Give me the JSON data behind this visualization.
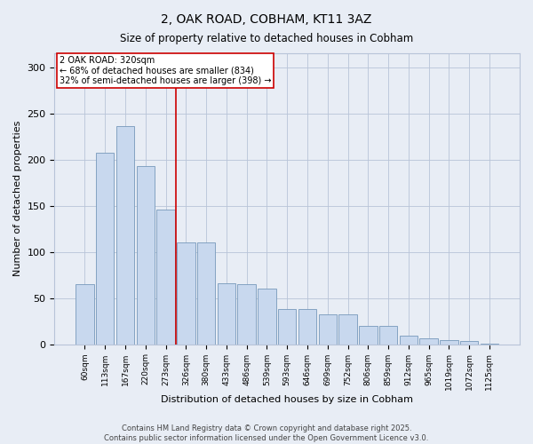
{
  "title_line1": "2, OAK ROAD, COBHAM, KT11 3AZ",
  "title_line2": "Size of property relative to detached houses in Cobham",
  "xlabel": "Distribution of detached houses by size in Cobham",
  "ylabel": "Number of detached properties",
  "categories": [
    "60sqm",
    "113sqm",
    "167sqm",
    "220sqm",
    "273sqm",
    "326sqm",
    "380sqm",
    "433sqm",
    "486sqm",
    "539sqm",
    "593sqm",
    "646sqm",
    "699sqm",
    "752sqm",
    "806sqm",
    "859sqm",
    "912sqm",
    "965sqm",
    "1019sqm",
    "1072sqm",
    "1125sqm"
  ],
  "values": [
    65,
    207,
    236,
    193,
    146,
    110,
    110,
    66,
    65,
    60,
    38,
    38,
    32,
    32,
    20,
    20,
    9,
    6,
    4,
    3,
    1
  ],
  "bar_color": "#c8d8ee",
  "bar_edge_color": "#7799bb",
  "bar_edge_width": 0.6,
  "grid_color": "#b8c4d8",
  "background_color": "#e8edf5",
  "vline_color": "#cc0000",
  "vline_pos": 4.5,
  "annotation_text": "2 OAK ROAD: 320sqm\n← 68% of detached houses are smaller (834)\n32% of semi-detached houses are larger (398) →",
  "annotation_box_facecolor": "#ffffff",
  "annotation_box_edgecolor": "#cc0000",
  "footer_text": "Contains HM Land Registry data © Crown copyright and database right 2025.\nContains public sector information licensed under the Open Government Licence v3.0.",
  "ylim": [
    0,
    315
  ],
  "yticks": [
    0,
    50,
    100,
    150,
    200,
    250,
    300
  ]
}
